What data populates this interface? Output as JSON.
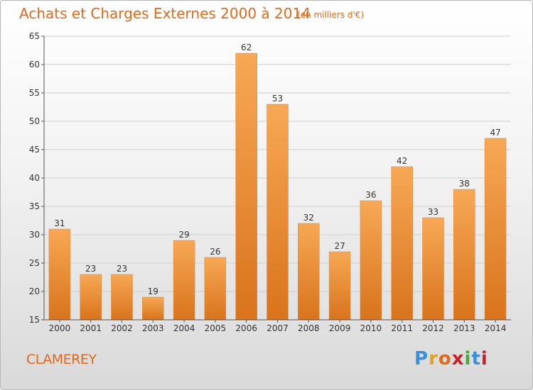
{
  "header": {
    "title": "Achats et Charges Externes 2000 à 2014",
    "subtitle": "(en milliers d'€)"
  },
  "footer": {
    "place": "CLAMEREY",
    "logo": {
      "letters": [
        "P",
        "r",
        "o",
        "x",
        "i",
        "t",
        "i"
      ],
      "colors": [
        "#3b8fd8",
        "#e0a21c",
        "#e06a1c",
        "#c8202a",
        "#4aa83c",
        "#3b8fd8",
        "#c8202a"
      ]
    }
  },
  "colors": {
    "bar_top": "#f7a855",
    "bar_bottom": "#d9731c",
    "accent": "#e06a1c",
    "grid": "#d0d0d0"
  },
  "chart_data": {
    "type": "bar",
    "categories": [
      "2000",
      "2001",
      "2002",
      "2003",
      "2004",
      "2005",
      "2006",
      "2007",
      "2008",
      "2009",
      "2010",
      "2011",
      "2012",
      "2013",
      "2014"
    ],
    "values": [
      31,
      23,
      23,
      19,
      29,
      26,
      62,
      53,
      32,
      27,
      36,
      42,
      33,
      38,
      47
    ],
    "title": "Achats et Charges Externes 2000 à 2014",
    "ylim": [
      15,
      65
    ],
    "yticks": [
      15,
      20,
      25,
      30,
      35,
      40,
      45,
      50,
      55,
      60,
      65
    ],
    "grid": true
  }
}
